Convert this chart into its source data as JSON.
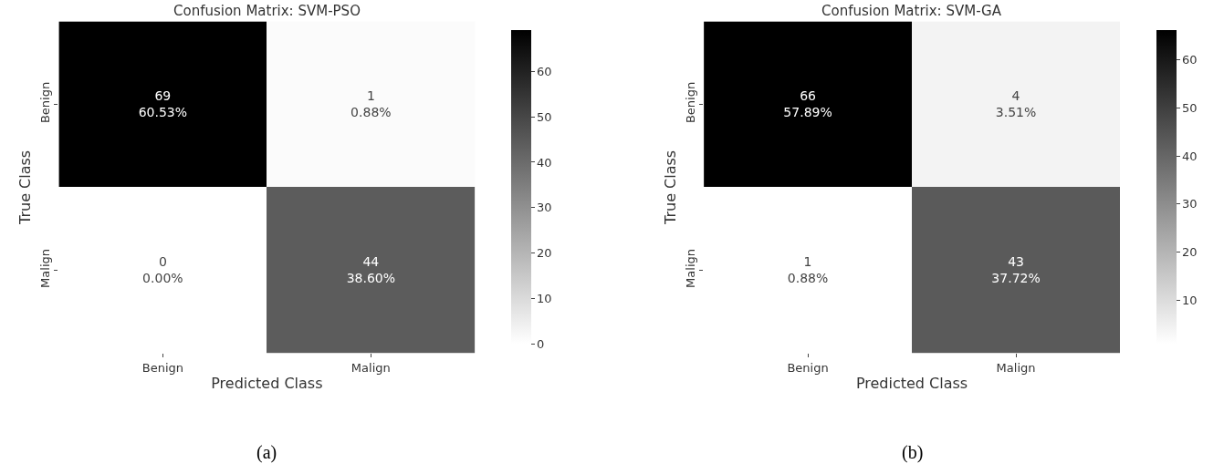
{
  "chart_data": [
    {
      "type": "heatmap",
      "title": "Confusion Matrix: SVM-PSO",
      "xlabel": "Predicted Class",
      "ylabel": "True Class",
      "categories": [
        "Benign",
        "Malign"
      ],
      "y_categories": [
        "Benign",
        "Malign"
      ],
      "cells": [
        [
          69,
          1
        ],
        [
          0,
          44
        ]
      ],
      "cell_labels": [
        [
          "69\n60.53%",
          "1\n0.88%"
        ],
        [
          "0\n0.00%",
          "44\n38.60%"
        ]
      ],
      "clim": [
        0,
        69
      ],
      "cticks": [
        0,
        10,
        20,
        30,
        40,
        50,
        60
      ],
      "annotations": [
        "(a)"
      ]
    },
    {
      "type": "heatmap",
      "title": "Confusion Matrix: SVM-GA",
      "xlabel": "Predicted Class",
      "ylabel": "True Class",
      "categories": [
        "Benign",
        "Malign"
      ],
      "y_categories": [
        "Benign",
        "Malign"
      ],
      "cells": [
        [
          66,
          4
        ],
        [
          1,
          43
        ]
      ],
      "cell_labels": [
        [
          "66\n57.89%",
          "4\n3.51%"
        ],
        [
          "1\n0.88%",
          "43\n37.72%"
        ]
      ],
      "clim": [
        1,
        66
      ],
      "cticks": [
        10,
        20,
        30,
        40,
        50,
        60
      ],
      "annotations": [
        "(b)"
      ]
    }
  ]
}
